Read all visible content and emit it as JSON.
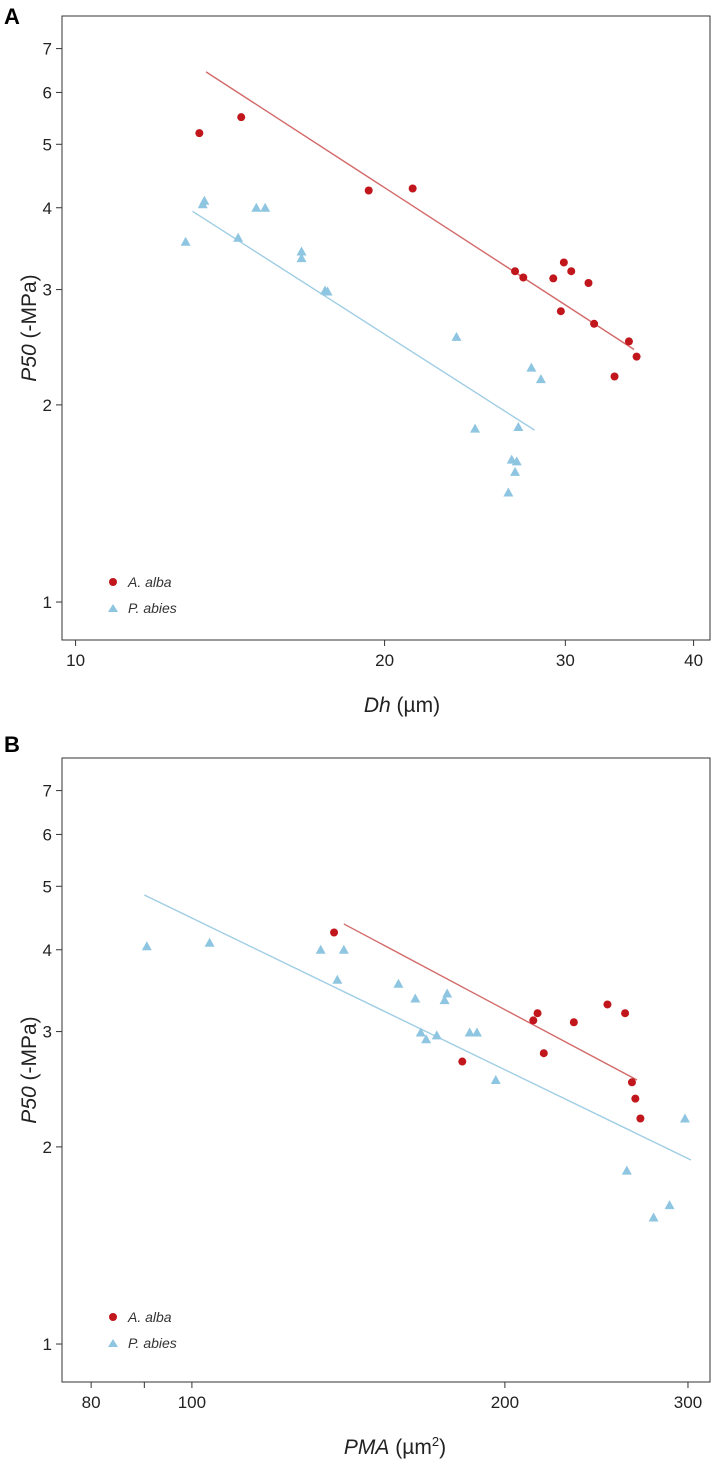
{
  "colors": {
    "alba": "#c0161c",
    "abies": "#8ec5e0",
    "alba_line": "#d36a6a",
    "abies_line": "#9fcde4"
  },
  "chart_data": [
    {
      "panel": "A",
      "type": "scatter",
      "x_scale": "log",
      "y_scale": "log",
      "xlabel_main": "Dh",
      "xlabel_unit": " (µm)",
      "ylabel_main": "P50",
      "ylabel_unit": " (-MPa)",
      "xlim": [
        9.7,
        41.5
      ],
      "ylim": [
        0.875,
        7.85
      ],
      "x_ticks": [
        10,
        20,
        30,
        40
      ],
      "x_tick_labels": [
        "10",
        "20",
        "30",
        "40"
      ],
      "y_ticks": [
        1,
        2,
        3,
        4,
        5,
        6,
        7
      ],
      "y_tick_labels": [
        "1",
        "2",
        "3",
        "4",
        "5",
        "6",
        "7"
      ],
      "legend_position": "bottom-left",
      "series": [
        {
          "name": "A. alba",
          "marker": "circle",
          "points": [
            [
              13.2,
              5.2
            ],
            [
              14.5,
              5.5
            ],
            [
              19.3,
              4.25
            ],
            [
              21.3,
              4.28
            ],
            [
              26.8,
              3.2
            ],
            [
              27.3,
              3.13
            ],
            [
              29.2,
              3.12
            ],
            [
              29.7,
              2.78
            ],
            [
              29.9,
              3.3
            ],
            [
              30.4,
              3.2
            ],
            [
              31.6,
              3.07
            ],
            [
              32.0,
              2.66
            ],
            [
              33.5,
              2.21
            ],
            [
              34.6,
              2.5
            ],
            [
              35.2,
              2.37
            ]
          ],
          "fit": [
            [
              13.4,
              6.45
            ],
            [
              35.0,
              2.43
            ]
          ]
        },
        {
          "name": "P. abies",
          "marker": "triangle",
          "points": [
            [
              12.8,
              3.55
            ],
            [
              13.3,
              4.05
            ],
            [
              13.35,
              4.1
            ],
            [
              14.4,
              3.6
            ],
            [
              15.0,
              4.0
            ],
            [
              15.3,
              4.0
            ],
            [
              16.6,
              3.35
            ],
            [
              16.6,
              3.43
            ],
            [
              17.5,
              2.99
            ],
            [
              17.6,
              2.98
            ],
            [
              23.5,
              2.54
            ],
            [
              24.5,
              1.84
            ],
            [
              26.4,
              1.47
            ],
            [
              26.6,
              1.65
            ],
            [
              26.8,
              1.58
            ],
            [
              26.9,
              1.64
            ],
            [
              27.0,
              1.85
            ],
            [
              27.8,
              2.28
            ],
            [
              28.4,
              2.19
            ]
          ],
          "fit": [
            [
              13.0,
              3.95
            ],
            [
              28.0,
              1.83
            ]
          ]
        }
      ]
    },
    {
      "panel": "B",
      "type": "scatter",
      "x_scale": "log",
      "y_scale": "log",
      "xlabel_main": "PMA",
      "xlabel_unit": " (µm",
      "xlabel_sup": "2",
      "xlabel_close": ")",
      "ylabel_main": "P50",
      "ylabel_unit": " (-MPa)",
      "xlim": [
        75,
        315
      ],
      "ylim": [
        0.875,
        7.85
      ],
      "x_ticks": [
        80,
        90,
        100,
        200,
        300
      ],
      "x_tick_labels": [
        "80",
        "",
        "100",
        "200",
        "300"
      ],
      "y_ticks": [
        1,
        2,
        3,
        4,
        5,
        6,
        7
      ],
      "y_tick_labels": [
        "1",
        "2",
        "3",
        "4",
        "5",
        "6",
        "7"
      ],
      "legend_position": "bottom-left",
      "series": [
        {
          "name": "A. alba",
          "marker": "circle",
          "points": [
            [
              137,
              4.25
            ],
            [
              182,
              2.7
            ],
            [
              213,
              3.12
            ],
            [
              215,
              3.2
            ],
            [
              218,
              2.78
            ],
            [
              233,
              3.1
            ],
            [
              251,
              3.3
            ],
            [
              261,
              3.2
            ],
            [
              265,
              2.51
            ],
            [
              267,
              2.37
            ],
            [
              270,
              2.21
            ]
          ],
          "fit": [
            [
              140,
              4.38
            ],
            [
              268,
              2.53
            ]
          ]
        },
        {
          "name": "P. abies",
          "marker": "triangle",
          "points": [
            [
              90.5,
              4.05
            ],
            [
              104,
              4.1
            ],
            [
              133,
              4.0
            ],
            [
              138,
              3.6
            ],
            [
              140,
              4.0
            ],
            [
              158,
              3.55
            ],
            [
              164,
              3.37
            ],
            [
              166,
              2.99
            ],
            [
              168,
              2.92
            ],
            [
              172,
              2.96
            ],
            [
              175,
              3.35
            ],
            [
              176,
              3.43
            ],
            [
              185,
              2.99
            ],
            [
              188,
              2.99
            ],
            [
              196,
              2.53
            ],
            [
              262,
              1.84
            ],
            [
              278,
              1.56
            ],
            [
              288,
              1.63
            ],
            [
              298,
              2.21
            ]
          ],
          "fit": [
            [
              90,
              4.85
            ],
            [
              302,
              1.91
            ]
          ]
        }
      ]
    }
  ]
}
